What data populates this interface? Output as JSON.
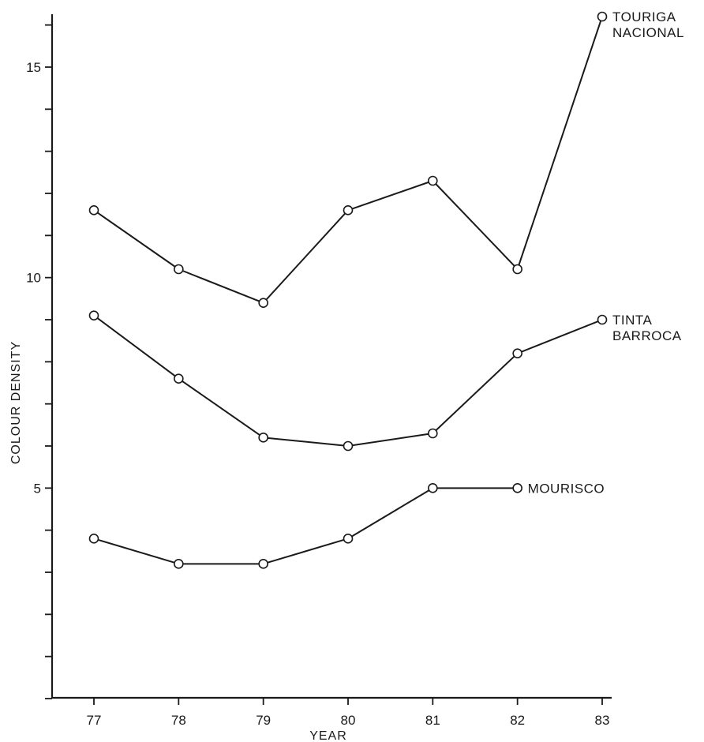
{
  "chart_data": {
    "type": "line",
    "title": "",
    "xlabel": "YEAR",
    "ylabel": "COLOUR DENSITY",
    "x": [
      "77",
      "78",
      "79",
      "80",
      "81",
      "82",
      "83"
    ],
    "xlim": [
      76.5,
      83.2
    ],
    "ylim": [
      0,
      16.2
    ],
    "y_ticks": [
      0,
      1,
      2,
      3,
      4,
      5,
      6,
      7,
      8,
      9,
      10,
      11,
      12,
      13,
      14,
      15,
      16
    ],
    "y_tick_labels": [
      {
        "value": 5,
        "label": "5"
      },
      {
        "value": 10,
        "label": "10"
      },
      {
        "value": 15,
        "label": "15"
      }
    ],
    "grid": false,
    "legend": "none",
    "series": [
      {
        "name_lines": [
          "TOURIGA",
          "NACIONAL"
        ],
        "x": [
          77,
          78,
          79,
          80,
          81,
          82,
          83
        ],
        "values": [
          11.6,
          10.2,
          9.4,
          11.6,
          12.3,
          10.2,
          16.2
        ]
      },
      {
        "name_lines": [
          "TINTA",
          "BARROCA"
        ],
        "x": [
          77,
          78,
          79,
          80,
          81,
          82,
          83
        ],
        "values": [
          9.1,
          7.6,
          6.2,
          6.0,
          6.3,
          8.2,
          9.0
        ]
      },
      {
        "name_lines": [
          "MOURISCO"
        ],
        "x": [
          77,
          78,
          79,
          80,
          81,
          82
        ],
        "values": [
          3.8,
          3.2,
          3.2,
          3.8,
          5.0,
          5.0
        ]
      }
    ]
  }
}
